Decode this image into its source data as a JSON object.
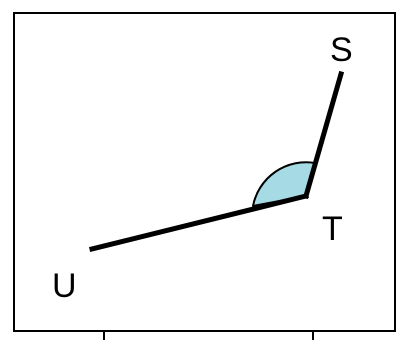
{
  "diagram": {
    "type": "angle",
    "points": {
      "S": {
        "label": "S"
      },
      "T": {
        "label": "T"
      },
      "U": {
        "label": "U"
      }
    },
    "angle": {
      "vertex": "T",
      "arms": [
        "S",
        "U"
      ]
    },
    "colors": {
      "line": "#000000",
      "angle_fill": "#a6dbe6",
      "frame": "#000000",
      "background": "#ffffff"
    }
  }
}
